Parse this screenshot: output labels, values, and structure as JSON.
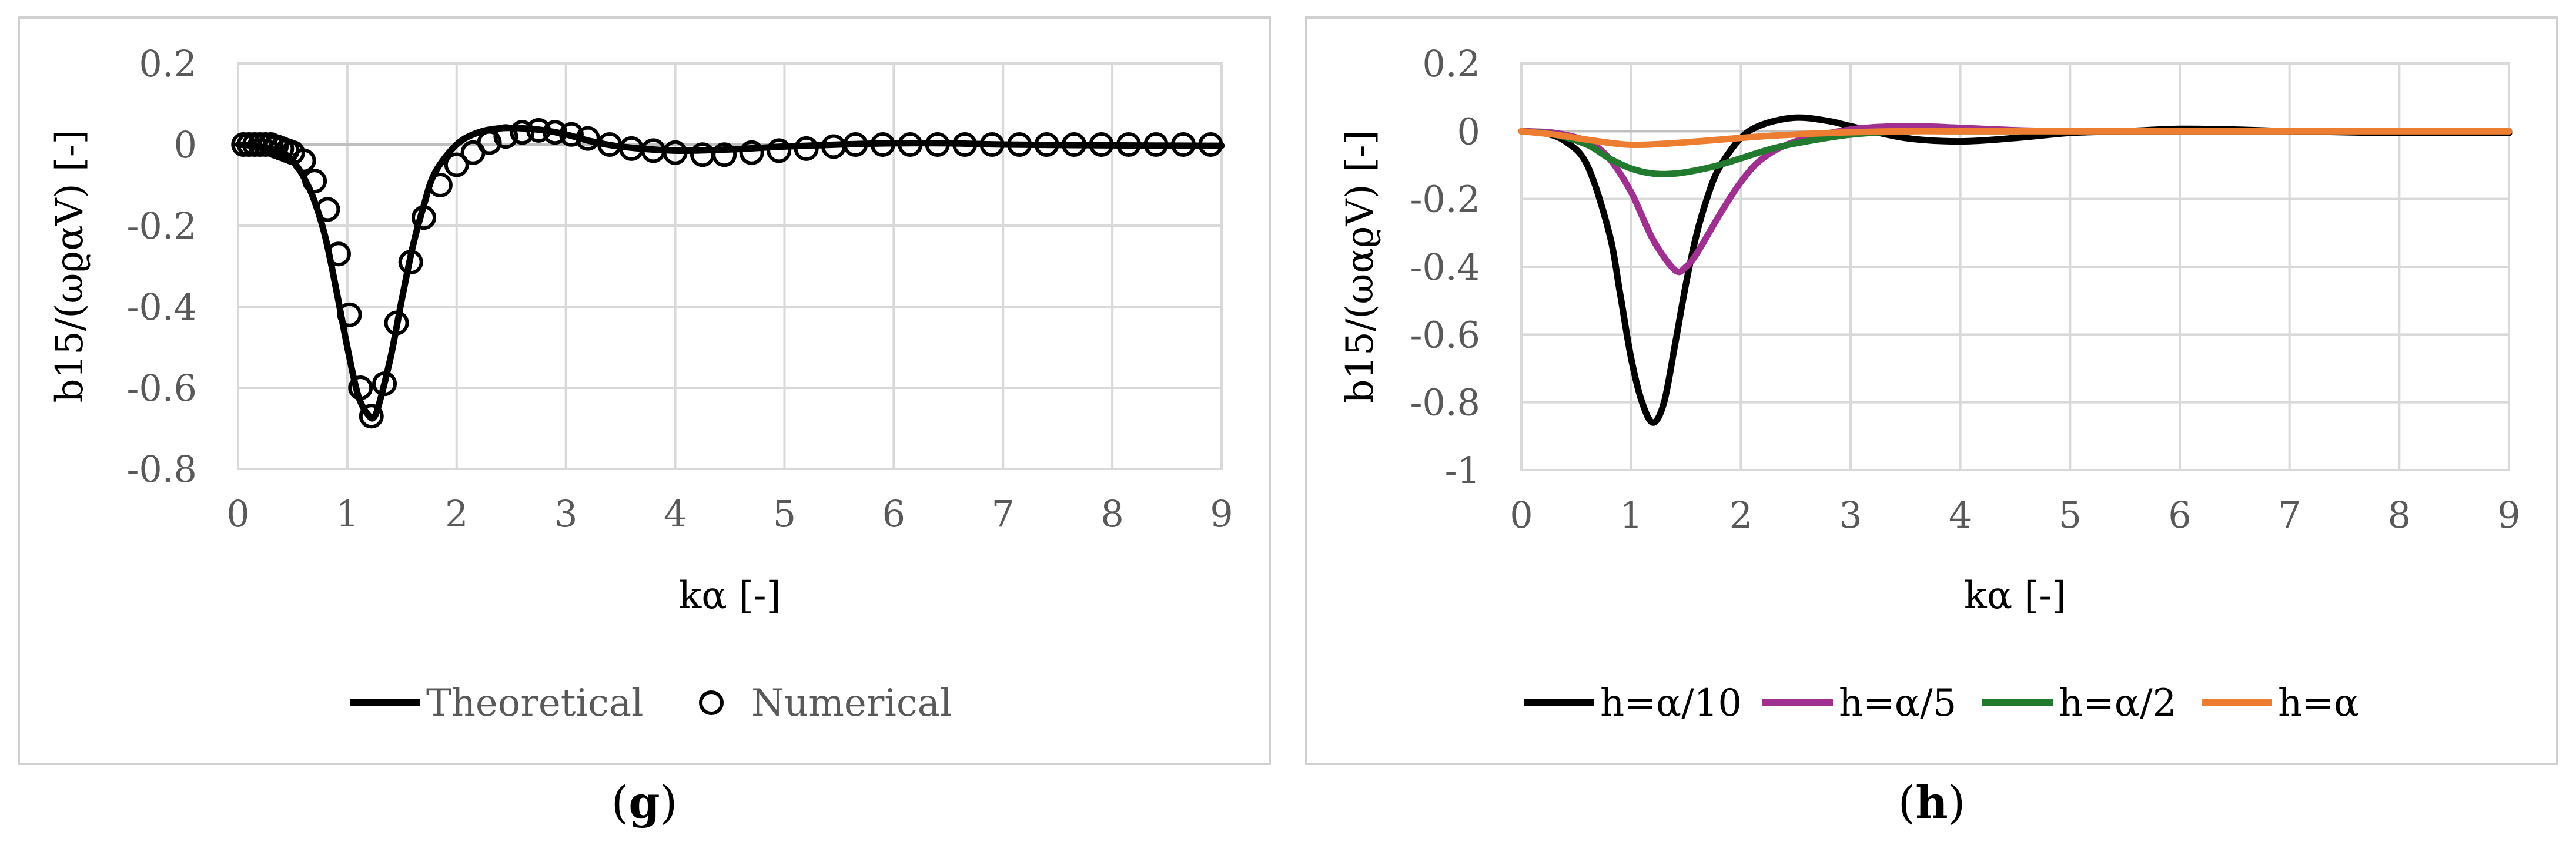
{
  "chart_data": [
    {
      "type": "line",
      "panel": "g",
      "caption": {
        "open": "(",
        "letter": "g",
        "close": ")"
      },
      "xlabel": "kα [-]",
      "ylabel": "b15/(ωϱαV) [-]",
      "xlim": [
        0,
        9
      ],
      "ylim": [
        -0.8,
        0.2
      ],
      "x_ticks": [
        0,
        1,
        2,
        3,
        4,
        5,
        6,
        7,
        8,
        9
      ],
      "y_ticks": [
        0.2,
        0,
        -0.2,
        -0.4,
        -0.6,
        -0.8
      ],
      "y_tick_labels": [
        "0.2",
        "0",
        "-0.2",
        "-0.4",
        "-0.6",
        "-0.8"
      ],
      "grid": true,
      "legend_position": "bottom",
      "colors": {
        "theoretical": "#000000",
        "numerical": "#000000"
      },
      "series": [
        {
          "name": "Theoretical",
          "style": "line",
          "x": [
            0,
            0.2,
            0.4,
            0.5,
            0.6,
            0.7,
            0.8,
            0.9,
            1.0,
            1.1,
            1.2,
            1.25,
            1.3,
            1.4,
            1.5,
            1.6,
            1.7,
            1.8,
            2.0,
            2.2,
            2.4,
            2.6,
            2.8,
            3.0,
            3.2,
            3.5,
            4.0,
            4.5,
            5.0,
            5.5,
            6.0,
            6.5,
            7.0,
            8.0,
            9.0
          ],
          "y": [
            0,
            -0.005,
            -0.02,
            -0.04,
            -0.08,
            -0.14,
            -0.23,
            -0.36,
            -0.5,
            -0.62,
            -0.67,
            -0.67,
            -0.63,
            -0.52,
            -0.38,
            -0.25,
            -0.15,
            -0.07,
            0.0,
            0.03,
            0.04,
            0.04,
            0.035,
            0.025,
            0.01,
            -0.005,
            -0.015,
            -0.012,
            -0.005,
            0.0,
            0.003,
            0.003,
            0.0,
            -0.002,
            -0.003
          ]
        },
        {
          "name": "Numerical",
          "style": "markers",
          "x": [
            0.05,
            0.1,
            0.15,
            0.2,
            0.25,
            0.3,
            0.35,
            0.4,
            0.45,
            0.5,
            0.6,
            0.7,
            0.82,
            0.92,
            1.02,
            1.12,
            1.22,
            1.34,
            1.45,
            1.58,
            1.7,
            1.85,
            2.0,
            2.15,
            2.3,
            2.45,
            2.6,
            2.75,
            2.9,
            3.05,
            3.2,
            3.4,
            3.6,
            3.8,
            4.0,
            4.25,
            4.45,
            4.7,
            4.95,
            5.2,
            5.45,
            5.65,
            5.9,
            6.15,
            6.4,
            6.65,
            6.9,
            7.15,
            7.4,
            7.65,
            7.9,
            8.15,
            8.4,
            8.65,
            8.9
          ],
          "y": [
            0.0,
            0.0,
            0.0,
            0.0,
            0.0,
            0.0,
            -0.005,
            -0.01,
            -0.015,
            -0.02,
            -0.04,
            -0.09,
            -0.16,
            -0.27,
            -0.42,
            -0.6,
            -0.67,
            -0.59,
            -0.44,
            -0.29,
            -0.18,
            -0.1,
            -0.05,
            -0.02,
            0.005,
            0.02,
            0.03,
            0.035,
            0.03,
            0.025,
            0.015,
            0.0,
            -0.01,
            -0.015,
            -0.02,
            -0.025,
            -0.025,
            -0.02,
            -0.015,
            -0.01,
            -0.005,
            0.0,
            0.0,
            0.0,
            0.0,
            0.0,
            0.0,
            0.0,
            0.0,
            0.0,
            0.0,
            0.0,
            0.0,
            0.0,
            0.0
          ]
        }
      ]
    },
    {
      "type": "line",
      "panel": "h",
      "caption": {
        "open": "(",
        "letter": "h",
        "close": ")"
      },
      "xlabel": "kα [-]",
      "ylabel": "b15/(ωαϱV) [-]",
      "xlim": [
        0,
        9
      ],
      "ylim": [
        -1,
        0.2
      ],
      "x_ticks": [
        0,
        1,
        2,
        3,
        4,
        5,
        6,
        7,
        8,
        9
      ],
      "y_ticks": [
        0.2,
        0,
        -0.2,
        -0.4,
        -0.6,
        -0.8,
        -1
      ],
      "y_tick_labels": [
        "0.2",
        "0",
        "-0.2",
        "-0.4",
        "-0.6",
        "-0.8",
        "-1"
      ],
      "grid": true,
      "legend_position": "bottom",
      "series": [
        {
          "name": "h=α/10",
          "color": "#000000",
          "x": [
            0,
            0.2,
            0.4,
            0.6,
            0.8,
            0.9,
            1.0,
            1.1,
            1.2,
            1.3,
            1.4,
            1.5,
            1.6,
            1.7,
            1.8,
            2.0,
            2.2,
            2.5,
            2.8,
            3.0,
            3.5,
            4.0,
            4.5,
            5.0,
            5.5,
            6.0,
            6.5,
            7.0,
            8.0,
            9.0
          ],
          "y": [
            0,
            -0.005,
            -0.03,
            -0.1,
            -0.3,
            -0.48,
            -0.67,
            -0.8,
            -0.86,
            -0.8,
            -0.63,
            -0.45,
            -0.3,
            -0.19,
            -0.11,
            -0.02,
            0.02,
            0.04,
            0.03,
            0.015,
            -0.02,
            -0.03,
            -0.02,
            -0.005,
            0.0,
            0.007,
            0.005,
            0.0,
            -0.005,
            -0.005
          ]
        },
        {
          "name": "h=α/5",
          "color": "#a03090",
          "x": [
            0,
            0.3,
            0.6,
            0.8,
            1.0,
            1.2,
            1.4,
            1.5,
            1.6,
            1.8,
            2.0,
            2.2,
            2.5,
            3.0,
            3.5,
            4.0,
            4.5,
            5.0,
            6.0,
            7.0,
            8.0,
            9.0
          ],
          "y": [
            0,
            -0.005,
            -0.03,
            -0.08,
            -0.18,
            -0.32,
            -0.41,
            -0.4,
            -0.36,
            -0.25,
            -0.15,
            -0.08,
            -0.03,
            0.005,
            0.015,
            0.01,
            0.003,
            0.0,
            0.0,
            0.0,
            0.0,
            0.0
          ]
        },
        {
          "name": "h=α/2",
          "color": "#217a2e",
          "x": [
            0,
            0.3,
            0.6,
            0.8,
            1.0,
            1.2,
            1.4,
            1.6,
            1.8,
            2.0,
            2.3,
            2.6,
            3.0,
            3.5,
            4.0,
            5.0,
            6.0,
            7.0,
            8.0,
            9.0
          ],
          "y": [
            0,
            -0.01,
            -0.04,
            -0.08,
            -0.11,
            -0.125,
            -0.125,
            -0.115,
            -0.1,
            -0.08,
            -0.05,
            -0.03,
            -0.01,
            0.0,
            0.0,
            0.0,
            0.0,
            0.0,
            0.0,
            0.0
          ]
        },
        {
          "name": "h=α",
          "color": "#ed7d31",
          "x": [
            0,
            0.3,
            0.6,
            0.9,
            1.1,
            1.4,
            1.8,
            2.2,
            2.6,
            3.0,
            3.5,
            4.0,
            5.0,
            6.0,
            7.0,
            8.0,
            9.0
          ],
          "y": [
            0,
            -0.01,
            -0.025,
            -0.038,
            -0.04,
            -0.035,
            -0.025,
            -0.015,
            -0.008,
            -0.003,
            0.0,
            0.0,
            0.0,
            0.0,
            0.0,
            0.0,
            0.0
          ]
        }
      ]
    }
  ]
}
